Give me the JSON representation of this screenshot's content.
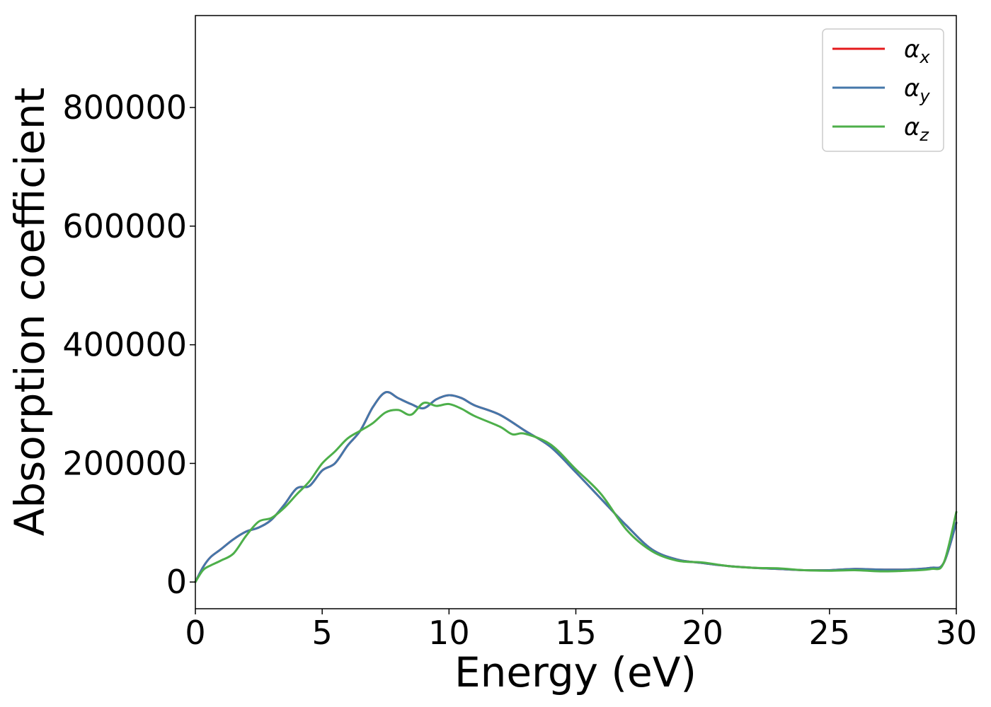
{
  "chart_data": {
    "type": "line",
    "xlabel": "Energy (eV)",
    "ylabel": "Absorption coefficient",
    "xlim": [
      0,
      30
    ],
    "ylim": [
      -45000,
      955000
    ],
    "xticks": [
      0,
      5,
      10,
      15,
      20,
      25,
      30
    ],
    "yticks": [
      0,
      200000,
      400000,
      600000,
      800000
    ],
    "grid": false,
    "legend_position": "top-right",
    "series": [
      {
        "name": "α_x",
        "name_base": "α",
        "name_sub": "x",
        "color": "#e41a1c",
        "x": [
          0,
          0.3,
          0.6,
          1,
          1.5,
          2,
          2.5,
          3,
          3.5,
          4,
          4.5,
          5,
          5.5,
          6,
          6.5,
          7,
          7.5,
          8,
          8.5,
          9,
          9.5,
          10,
          10.5,
          11,
          12,
          13,
          14,
          15,
          16,
          17,
          18,
          19,
          20,
          21,
          22,
          23,
          24,
          25,
          26,
          27,
          28,
          29,
          29.5,
          30
        ],
        "y": [
          0,
          25000,
          42000,
          55000,
          72000,
          85000,
          92000,
          105000,
          130000,
          158000,
          162000,
          188000,
          200000,
          230000,
          255000,
          295000,
          320000,
          310000,
          300000,
          293000,
          308000,
          315000,
          310000,
          298000,
          282000,
          255000,
          228000,
          185000,
          140000,
          95000,
          55000,
          38000,
          32000,
          27000,
          24000,
          22000,
          20000,
          20000,
          22000,
          21000,
          21000,
          24000,
          32000,
          100000
        ]
      },
      {
        "name": "α_y",
        "name_base": "α",
        "name_sub": "y",
        "color": "#4477aa",
        "x": [
          0,
          0.3,
          0.6,
          1,
          1.5,
          2,
          2.5,
          3,
          3.5,
          4,
          4.5,
          5,
          5.5,
          6,
          6.5,
          7,
          7.5,
          8,
          8.5,
          9,
          9.5,
          10,
          10.5,
          11,
          12,
          13,
          14,
          15,
          16,
          17,
          18,
          19,
          20,
          21,
          22,
          23,
          24,
          25,
          26,
          27,
          28,
          29,
          29.5,
          30
        ],
        "y": [
          0,
          25000,
          42000,
          55000,
          72000,
          85000,
          92000,
          105000,
          130000,
          158000,
          162000,
          188000,
          200000,
          230000,
          255000,
          295000,
          320000,
          310000,
          300000,
          293000,
          308000,
          315000,
          310000,
          298000,
          282000,
          255000,
          228000,
          185000,
          140000,
          95000,
          55000,
          38000,
          32000,
          27000,
          24000,
          22000,
          20000,
          20000,
          22000,
          21000,
          21000,
          24000,
          32000,
          100000
        ]
      },
      {
        "name": "α_z",
        "name_base": "α",
        "name_sub": "z",
        "color": "#4daf4a",
        "x": [
          0,
          0.3,
          0.6,
          1,
          1.5,
          2,
          2.5,
          3,
          3.5,
          4,
          4.5,
          5,
          5.5,
          6,
          6.5,
          7,
          7.5,
          8,
          8.5,
          9,
          9.5,
          10,
          10.5,
          11,
          12,
          12.5,
          13,
          14,
          15,
          16,
          17,
          18,
          19,
          20,
          21,
          22,
          23,
          24,
          25,
          26,
          27,
          28,
          29,
          29.5,
          30
        ],
        "y": [
          0,
          20000,
          28000,
          36000,
          48000,
          78000,
          102000,
          108000,
          125000,
          148000,
          170000,
          200000,
          220000,
          242000,
          255000,
          268000,
          286000,
          290000,
          282000,
          302000,
          297000,
          300000,
          292000,
          280000,
          262000,
          249000,
          250000,
          232000,
          190000,
          148000,
          88000,
          52000,
          36000,
          33000,
          27000,
          24000,
          23000,
          20000,
          19000,
          20000,
          18000,
          19000,
          22000,
          32000,
          118000
        ]
      }
    ]
  }
}
